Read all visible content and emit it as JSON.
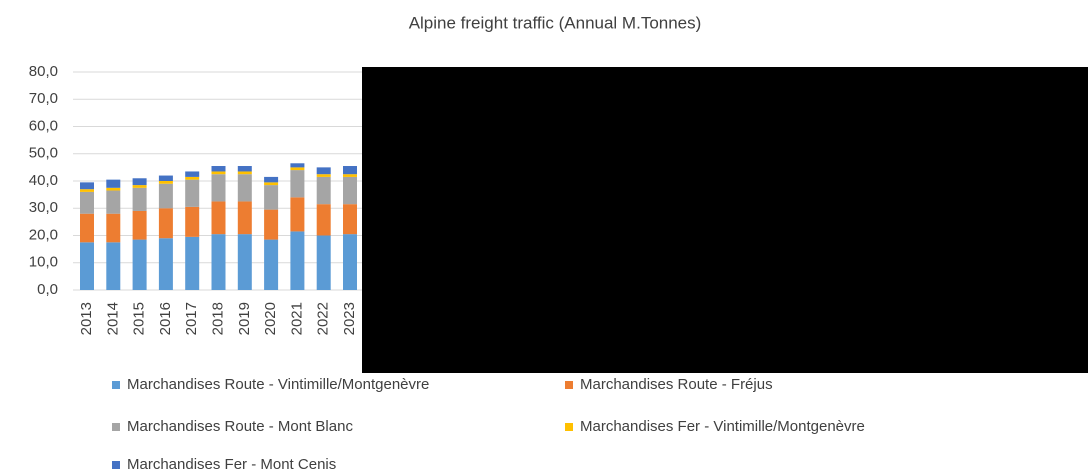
{
  "chart_data": {
    "type": "stacked_bar",
    "title": "Alpine freight traffic (Annual M.Tonnes)",
    "categories": [
      "2013",
      "2014",
      "2015",
      "2016",
      "2017",
      "2018",
      "2019",
      "2020",
      "2021",
      "2022",
      "2023"
    ],
    "series": [
      {
        "name": "Marchandises Route - Vintimille/Montgenèvre",
        "color": "#5b9bd5",
        "values": [
          17.5,
          17.5,
          18.5,
          19,
          19.5,
          20.5,
          20.5,
          18.5,
          21.5,
          20,
          20.5
        ]
      },
      {
        "name": "Marchandises Route - Fréjus",
        "color": "#ed7d31",
        "values": [
          10.5,
          10.5,
          10.5,
          11,
          11,
          12,
          12,
          11,
          12.5,
          11.5,
          11
        ]
      },
      {
        "name": "Marchandises Route - Mont Blanc",
        "color": "#a5a5a5",
        "values": [
          8,
          8.5,
          8.5,
          9,
          10,
          10,
          10,
          9,
          10,
          10,
          10
        ]
      },
      {
        "name": "Marchandises Fer - Vintimille/Montgenèvre",
        "color": "#ffc000",
        "values": [
          1,
          1,
          1,
          1,
          1,
          1,
          1,
          1,
          1,
          1,
          1
        ]
      },
      {
        "name": "Marchandises Fer - Mont Cenis",
        "color": "#4472c4",
        "values": [
          2.5,
          3,
          2.5,
          2,
          2,
          2,
          2,
          2,
          1.5,
          2.5,
          3
        ]
      }
    ],
    "ylim": [
      0,
      80
    ],
    "yticks": [
      {
        "value": 0,
        "label": "0,0"
      },
      {
        "value": 10,
        "label": "10,0"
      },
      {
        "value": 20,
        "label": "20,0"
      },
      {
        "value": 30,
        "label": "30,0"
      },
      {
        "value": 40,
        "label": "40,0"
      },
      {
        "value": 50,
        "label": "50,0"
      },
      {
        "value": 60,
        "label": "60,0"
      },
      {
        "value": 70,
        "label": "70,0"
      },
      {
        "value": 80,
        "label": "80,0"
      }
    ],
    "grid": true
  }
}
